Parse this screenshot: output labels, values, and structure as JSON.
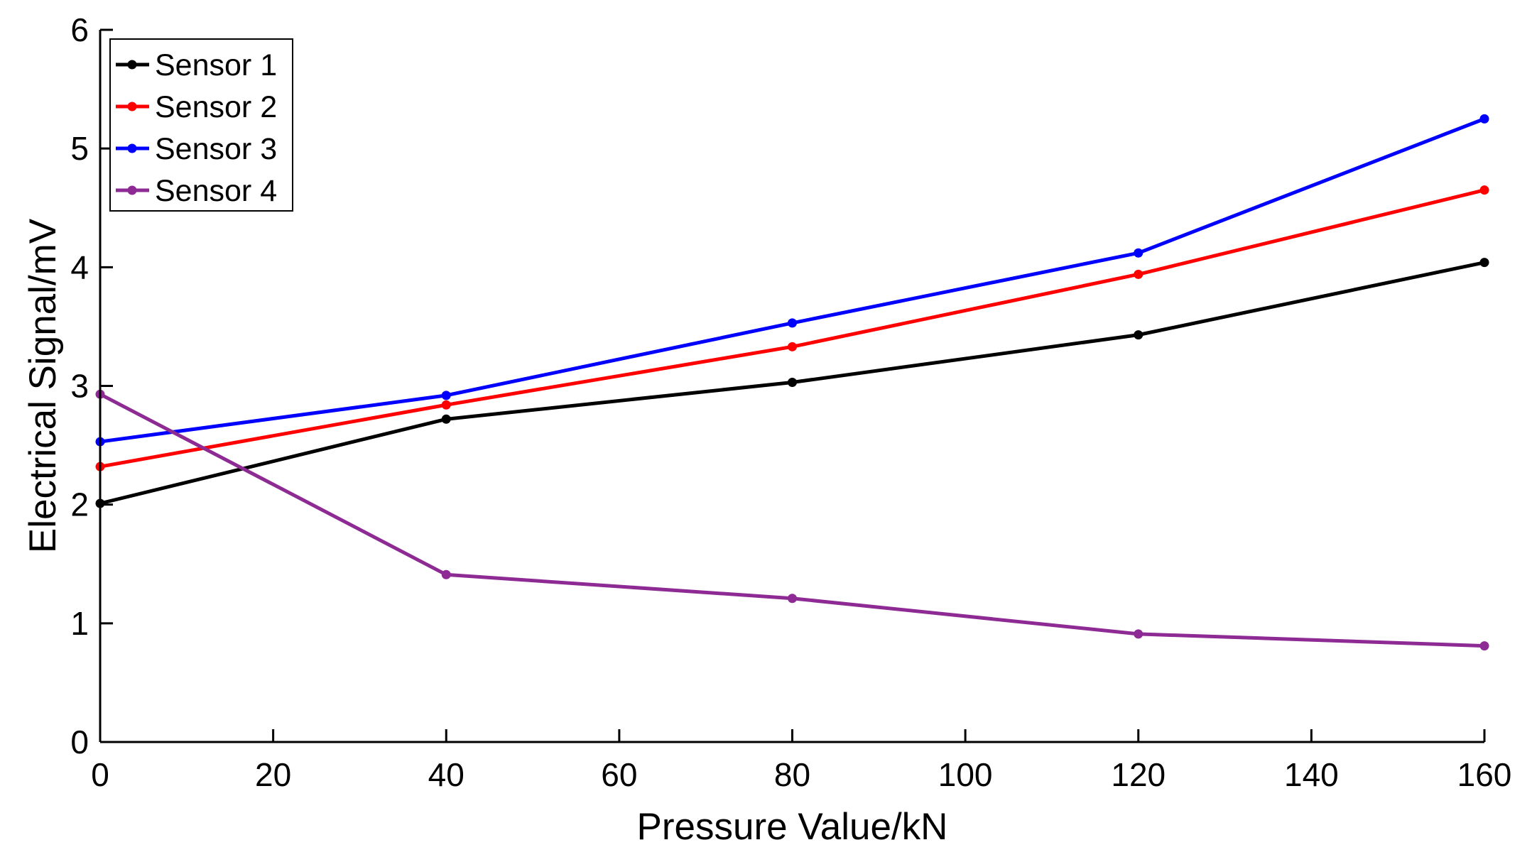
{
  "chart_data": {
    "type": "line",
    "title": "",
    "xlabel": "Pressure Value/kN",
    "ylabel": "Electrical Signal/mV",
    "xlim": [
      0,
      160
    ],
    "ylim": [
      0,
      6
    ],
    "xticks": [
      0,
      20,
      40,
      60,
      80,
      100,
      120,
      140,
      160
    ],
    "yticks": [
      0,
      1,
      2,
      3,
      4,
      5,
      6
    ],
    "grid": false,
    "legend_position": "top-left",
    "x": [
      0,
      40,
      80,
      120,
      160
    ],
    "series": [
      {
        "name": "Sensor 1",
        "color": "#000000",
        "values": [
          2.01,
          2.72,
          3.03,
          3.43,
          4.04
        ]
      },
      {
        "name": "Sensor 2",
        "color": "#ff0000",
        "values": [
          2.32,
          2.84,
          3.33,
          3.94,
          4.65
        ]
      },
      {
        "name": "Sensor 3",
        "color": "#0000ff",
        "values": [
          2.53,
          2.92,
          3.53,
          4.12,
          5.25
        ]
      },
      {
        "name": "Sensor 4",
        "color": "#8e2a94",
        "values": [
          2.93,
          1.41,
          1.21,
          0.91,
          0.81
        ]
      }
    ]
  }
}
